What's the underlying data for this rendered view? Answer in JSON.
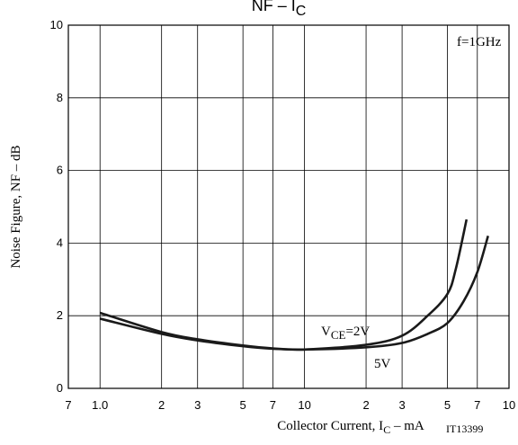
{
  "chart_data": {
    "type": "line",
    "title": {
      "text": "NF  –  I",
      "sub": "C"
    },
    "x_label": {
      "text": "Collector Current, I",
      "sub": "C",
      "tail": "  –  mA"
    },
    "y_label": "Noise Figure, NF  –  dB",
    "annotations": {
      "freq": "f=1GHz",
      "code": "IT13399"
    },
    "log_x": true,
    "grid": true,
    "xlim": [
      0.7,
      100
    ],
    "ylim": [
      0,
      10
    ],
    "xticks": [
      {
        "value": 0.7,
        "label": "7"
      },
      {
        "value": 1,
        "label": "1.0"
      },
      2,
      3,
      5,
      7,
      10,
      {
        "value": 20,
        "label": "2"
      },
      {
        "value": 30,
        "label": "3"
      },
      {
        "value": 50,
        "label": "5"
      },
      {
        "value": 70,
        "label": "7"
      },
      {
        "value": 100,
        "label": "10"
      }
    ],
    "yticks": [
      0,
      2,
      4,
      6,
      8,
      10
    ],
    "series": [
      {
        "name": {
          "text": "V",
          "sub": "CE",
          "tail": "=2V"
        },
        "color": "#1a1a1a",
        "x": [
          1,
          2,
          3,
          5,
          7,
          10,
          20,
          30,
          40,
          50,
          55,
          62
        ],
        "values": [
          2.08,
          1.55,
          1.35,
          1.18,
          1.1,
          1.07,
          1.2,
          1.45,
          2.0,
          2.6,
          3.3,
          4.65
        ]
      },
      {
        "name": {
          "text": "5V"
        },
        "color": "#1a1a1a",
        "x": [
          1,
          2,
          3,
          5,
          7,
          10,
          20,
          30,
          40,
          50,
          60,
          70,
          79
        ],
        "values": [
          1.92,
          1.5,
          1.32,
          1.16,
          1.09,
          1.07,
          1.13,
          1.25,
          1.5,
          1.8,
          2.4,
          3.2,
          4.2
        ]
      }
    ]
  }
}
